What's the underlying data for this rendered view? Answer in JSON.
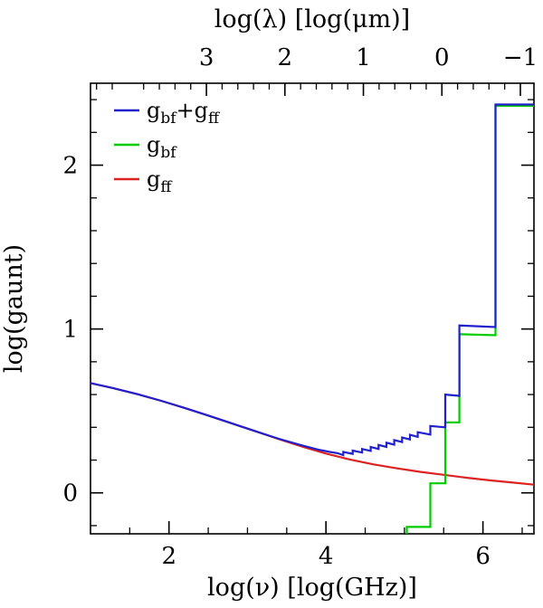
{
  "figure": {
    "background": "#ffffff",
    "frame_color": "#000000"
  },
  "chart_data": {
    "type": "line",
    "title": "",
    "xlabel": "log(ν)  [log(GHz)]",
    "ylabel": "log(gaunt)",
    "top_xlabel": "log(λ)  [log(μm)]",
    "xlim": [
      1.0,
      6.65
    ],
    "ylim": [
      -0.25,
      2.5
    ],
    "x_ticks": [
      2,
      4,
      6
    ],
    "x_minor_step": 0.5,
    "y_ticks": [
      0,
      1,
      2
    ],
    "y_minor_step": 0.2,
    "grid": false,
    "legend_position": "top-left",
    "top_axis": {
      "ticks": [
        3,
        2,
        1,
        0,
        -1
      ],
      "minor_step": 0.2,
      "nu_offset": 5.477
    },
    "legend_order": [
      "g_bf+g_ff",
      "g_bf",
      "g_ff"
    ],
    "series": [
      {
        "id": "g-ff",
        "name": "g_ff",
        "color": "#dd2222",
        "legend_segments": [
          {
            "t": "g"
          },
          {
            "t": "ff",
            "sub": true
          }
        ],
        "points": [
          [
            1.0,
            0.67
          ],
          [
            1.3,
            0.638
          ],
          [
            1.6,
            0.602
          ],
          [
            1.9,
            0.562
          ],
          [
            2.2,
            0.518
          ],
          [
            2.5,
            0.472
          ],
          [
            2.8,
            0.424
          ],
          [
            3.1,
            0.376
          ],
          [
            3.4,
            0.328
          ],
          [
            3.7,
            0.282
          ],
          [
            4.0,
            0.24
          ],
          [
            4.3,
            0.204
          ],
          [
            4.6,
            0.174
          ],
          [
            4.9,
            0.15
          ],
          [
            5.2,
            0.128
          ],
          [
            5.5,
            0.11
          ],
          [
            5.8,
            0.092
          ],
          [
            6.1,
            0.076
          ],
          [
            6.4,
            0.062
          ],
          [
            6.65,
            0.05
          ]
        ]
      },
      {
        "id": "g-bf",
        "name": "g_bf",
        "color": "#00cc00",
        "legend_segments": [
          {
            "t": "g"
          },
          {
            "t": "bf",
            "sub": true
          }
        ],
        "points": [
          [
            5.03,
            -0.25
          ],
          [
            5.03,
            -0.208
          ],
          [
            5.33,
            -0.208
          ],
          [
            5.33,
            0.058
          ],
          [
            5.52,
            0.058
          ],
          [
            5.52,
            0.43
          ],
          [
            5.7,
            0.43
          ],
          [
            5.7,
            0.968
          ],
          [
            6.16,
            0.962
          ],
          [
            6.16,
            2.362
          ],
          [
            6.65,
            2.362
          ]
        ]
      },
      {
        "id": "g-bf-plus-g-ff",
        "name": "g_bf+g_ff",
        "color": "#2020cc",
        "legend_segments": [
          {
            "t": "g"
          },
          {
            "t": "bf",
            "sub": true
          },
          {
            "t": "+g"
          },
          {
            "t": "ff",
            "sub": true
          }
        ],
        "points": [
          [
            1.0,
            0.67
          ],
          [
            1.3,
            0.638
          ],
          [
            1.6,
            0.602
          ],
          [
            1.9,
            0.562
          ],
          [
            2.2,
            0.518
          ],
          [
            2.5,
            0.472
          ],
          [
            2.8,
            0.424
          ],
          [
            3.1,
            0.376
          ],
          [
            3.4,
            0.33
          ],
          [
            3.7,
            0.289
          ],
          [
            3.9,
            0.264
          ],
          [
            4.05,
            0.25
          ],
          [
            4.15,
            0.242
          ],
          [
            4.22,
            0.23
          ],
          [
            4.22,
            0.25
          ],
          [
            4.34,
            0.238
          ],
          [
            4.34,
            0.258
          ],
          [
            4.46,
            0.246
          ],
          [
            4.46,
            0.268
          ],
          [
            4.57,
            0.256
          ],
          [
            4.57,
            0.28
          ],
          [
            4.67,
            0.268
          ],
          [
            4.67,
            0.292
          ],
          [
            4.77,
            0.28
          ],
          [
            4.77,
            0.306
          ],
          [
            4.87,
            0.294
          ],
          [
            4.87,
            0.322
          ],
          [
            4.97,
            0.31
          ],
          [
            4.97,
            0.338
          ],
          [
            5.07,
            0.326
          ],
          [
            5.07,
            0.354
          ],
          [
            5.17,
            0.342
          ],
          [
            5.17,
            0.37
          ],
          [
            5.33,
            0.356
          ],
          [
            5.33,
            0.408
          ],
          [
            5.52,
            0.4
          ],
          [
            5.52,
            0.6
          ],
          [
            5.7,
            0.592
          ],
          [
            5.7,
            1.022
          ],
          [
            6.16,
            1.012
          ],
          [
            6.16,
            2.37
          ],
          [
            6.65,
            2.37
          ]
        ]
      }
    ]
  }
}
